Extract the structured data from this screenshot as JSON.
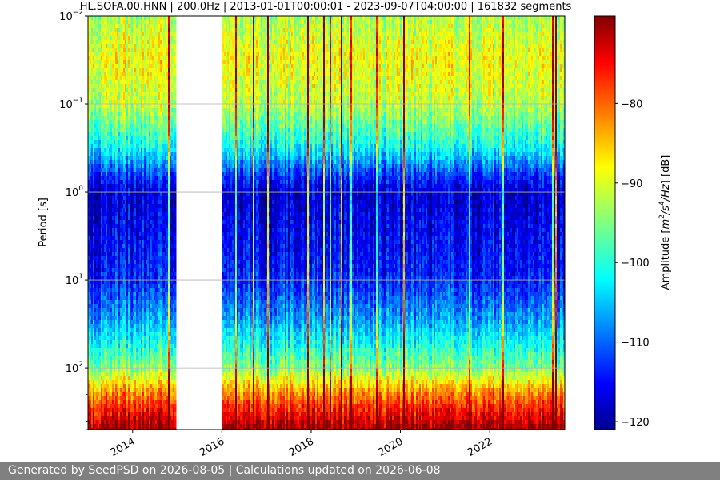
{
  "footer": {
    "text": "Generated by SeedPSD on 2026-08-05 | Calculations updated on 2026-06-08"
  },
  "chart_data": {
    "type": "heatmap",
    "title": "HL.SOFA.00.HNN | 200.0Hz | 2013-01-01T00:00:01 - 2023-09-07T04:00:00 | 161832 segments",
    "xlabel": "",
    "ylabel": "Period [s]",
    "x_range": [
      "2013-01-01",
      "2023-09-07"
    ],
    "x_ticks": [
      {
        "date": "2014-01-01",
        "label": "2014"
      },
      {
        "date": "2016-01-01",
        "label": "2016"
      },
      {
        "date": "2018-01-01",
        "label": "2018"
      },
      {
        "date": "2020-01-01",
        "label": "2020"
      },
      {
        "date": "2022-01-01",
        "label": "2022"
      }
    ],
    "y_scale": "log",
    "y_inverted": true,
    "y_range": [
      0.01,
      500
    ],
    "y_ticks": [
      {
        "value": 0.01,
        "base": "10",
        "exp": "−2"
      },
      {
        "value": 0.1,
        "base": "10",
        "exp": "−1"
      },
      {
        "value": 1,
        "base": "10",
        "exp": "0"
      },
      {
        "value": 10,
        "base": "10",
        "exp": "1"
      },
      {
        "value": 100,
        "base": "10",
        "exp": "2"
      }
    ],
    "grid": true,
    "data_gap": [
      "2015-01-01",
      "2016-01-01"
    ],
    "colormap": "jet",
    "colorbar": {
      "label_parts": [
        "Amplitude [",
        "m",
        "2",
        "/",
        "s",
        "4",
        "/",
        "Hz",
        "] [dB]"
      ],
      "range": [
        -121,
        -69
      ],
      "ticks": [
        -80,
        -90,
        -100,
        -110,
        -120
      ],
      "tick_labels": [
        "−80",
        "−90",
        "−100",
        "−110",
        "−120"
      ]
    },
    "amplitude_profile_db": [
      {
        "period": 0.01,
        "db": -93
      },
      {
        "period": 0.03,
        "db": -89
      },
      {
        "period": 0.1,
        "db": -92
      },
      {
        "period": 0.3,
        "db": -101
      },
      {
        "period": 0.7,
        "db": -113
      },
      {
        "period": 1,
        "db": -117
      },
      {
        "period": 3,
        "db": -115
      },
      {
        "period": 10,
        "db": -113
      },
      {
        "period": 30,
        "db": -106
      },
      {
        "period": 100,
        "db": -95
      },
      {
        "period": 200,
        "db": -82
      },
      {
        "period": 500,
        "db": -70
      }
    ]
  }
}
